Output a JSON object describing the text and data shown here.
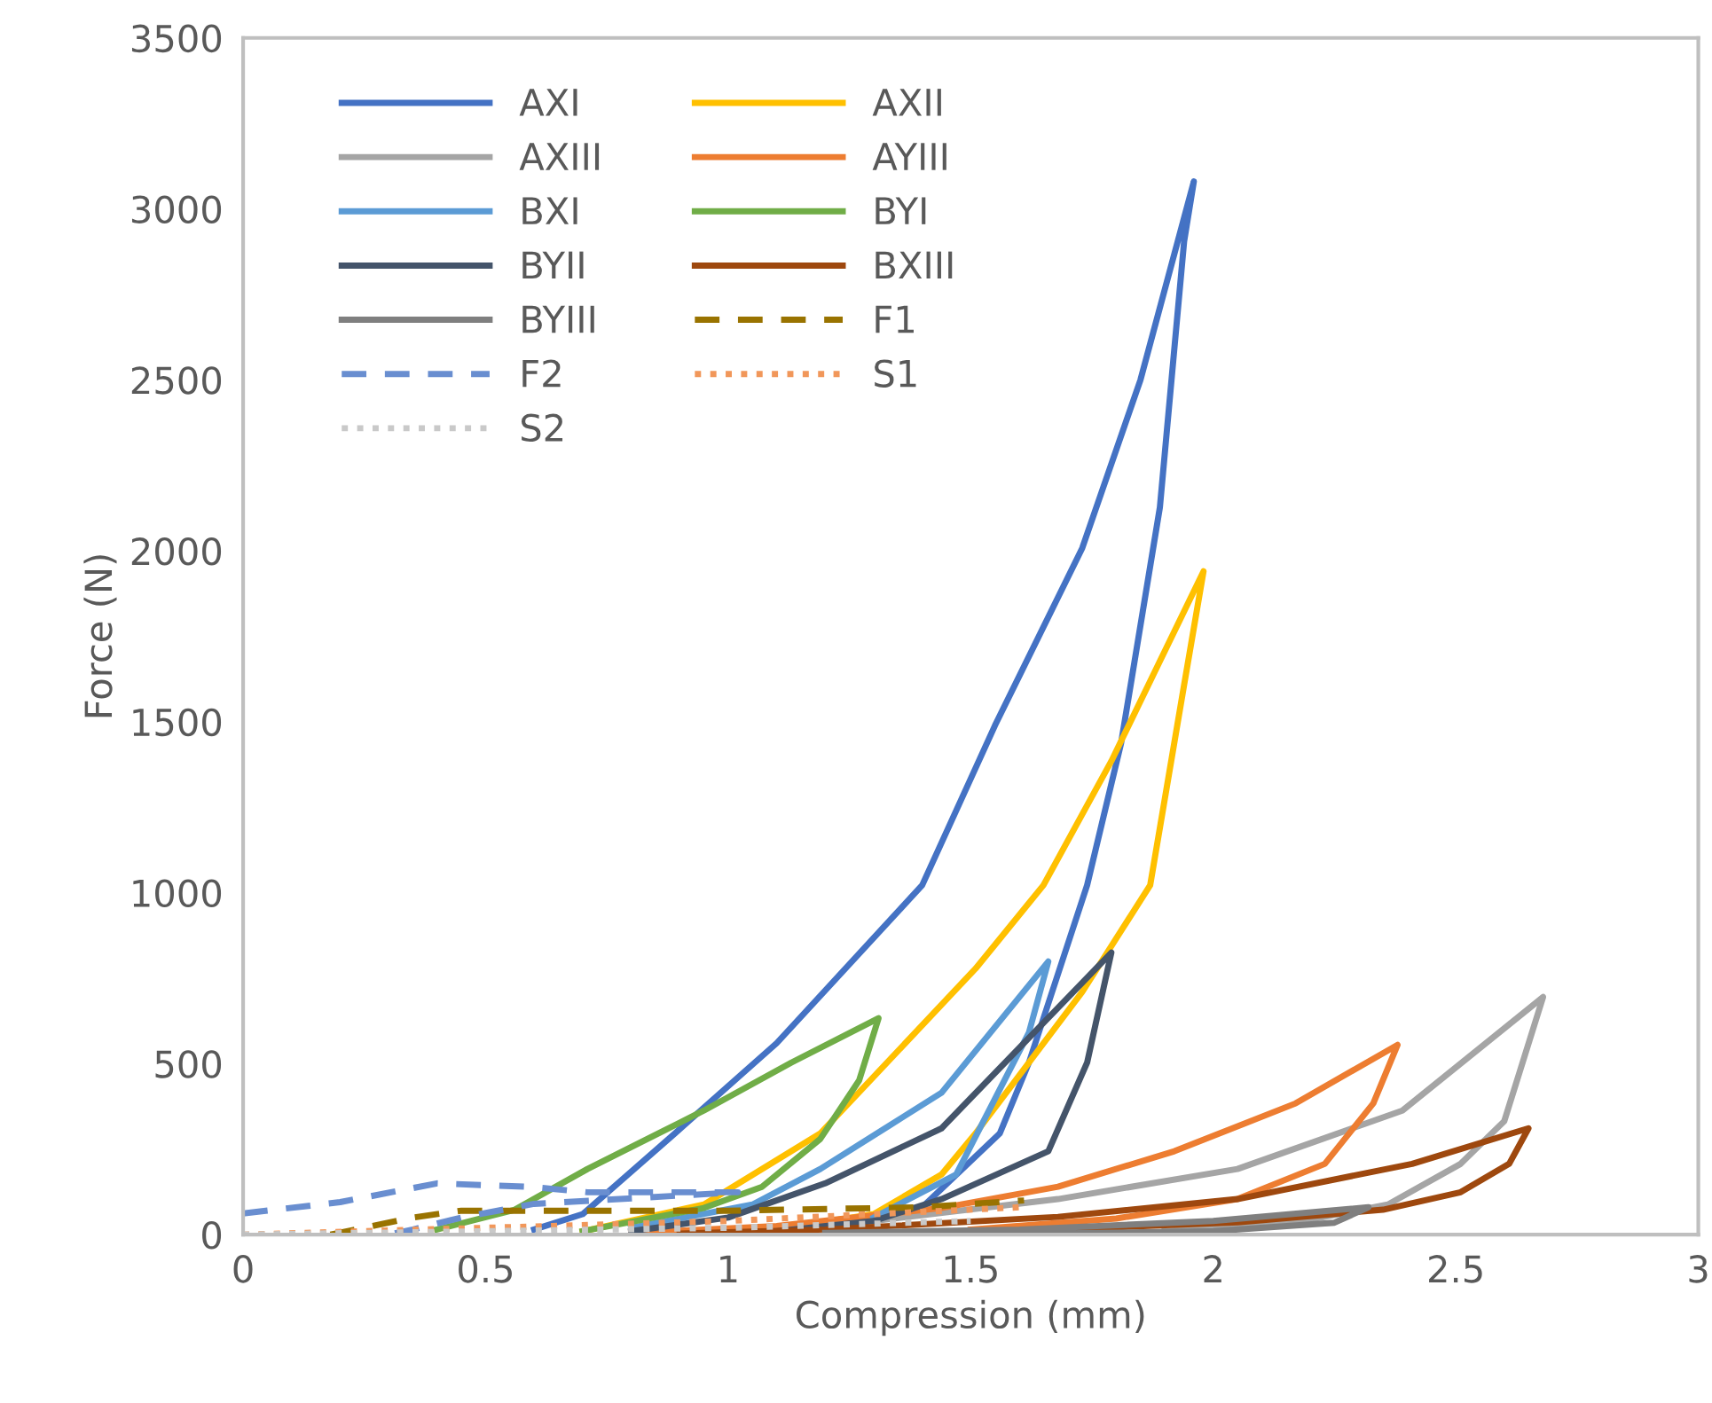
{
  "chart_data": {
    "type": "line",
    "xlabel": "Compression (mm)",
    "ylabel": "Force (N)",
    "xlim": [
      0,
      3
    ],
    "ylim": [
      0,
      3500
    ],
    "xticks": [
      0,
      0.5,
      1,
      1.5,
      2,
      2.5,
      3
    ],
    "yticks": [
      0,
      500,
      1000,
      1500,
      2000,
      2500,
      3000,
      3500
    ],
    "grid": false,
    "legend": "top left",
    "marker": "none",
    "series": [
      {
        "name": "AXI",
        "color": "#4472c4",
        "line_style": "solid",
        "x": [
          0.6,
          0.7,
          0.89,
          1.1,
          1.4,
          1.55,
          1.73,
          1.85,
          1.96,
          1.94,
          1.89,
          1.81,
          1.74,
          1.62,
          1.56,
          1.4,
          1.2
        ],
        "values": [
          15,
          60,
          296,
          560,
          1022,
          1489,
          2008,
          2500,
          3080,
          2905,
          2127,
          1437,
          1022,
          503,
          296,
          80,
          20
        ]
      },
      {
        "name": "AXII",
        "color": "#ffc000",
        "line_style": "solid",
        "x": [
          0.7,
          0.95,
          1.19,
          1.51,
          1.65,
          1.79,
          1.98,
          1.94,
          1.87,
          1.73,
          1.51,
          1.44,
          1.3,
          1.1,
          1.0
        ],
        "values": [
          10,
          88,
          296,
          778,
          1022,
          1385,
          1940,
          1608,
          1022,
          710,
          296,
          176,
          60,
          15,
          5
        ]
      },
      {
        "name": "AXIII",
        "color": "#a5a5a5",
        "line_style": "solid",
        "x": [
          1.0,
          1.3,
          1.68,
          2.05,
          2.39,
          2.68,
          2.6,
          2.51,
          2.36,
          2.17,
          1.9
        ],
        "values": [
          10,
          40,
          104,
          192,
          363,
          695,
          332,
          207,
          88,
          36,
          10
        ]
      },
      {
        "name": "AYIII",
        "color": "#ed7d31",
        "line_style": "solid",
        "x": [
          0.8,
          1.1,
          1.44,
          1.68,
          1.92,
          2.17,
          2.38,
          2.33,
          2.23,
          2.05,
          1.8,
          1.5
        ],
        "values": [
          5,
          25,
          78,
          140,
          244,
          384,
          555,
          384,
          207,
          104,
          47,
          15
        ]
      },
      {
        "name": "BXI",
        "color": "#5b9bd5",
        "line_style": "solid",
        "x": [
          0.8,
          1.05,
          1.19,
          1.44,
          1.66,
          1.62,
          1.47,
          1.3
        ],
        "values": [
          20,
          88,
          192,
          415,
          799,
          591,
          176,
          50
        ]
      },
      {
        "name": "BYI",
        "color": "#70ad47",
        "line_style": "solid",
        "x": [
          0.4,
          0.56,
          0.71,
          0.95,
          1.13,
          1.31,
          1.27,
          1.19,
          1.07,
          0.95,
          0.7
        ],
        "values": [
          15,
          73,
          192,
          363,
          503,
          633,
          451,
          280,
          140,
          78,
          10
        ]
      },
      {
        "name": "BYII",
        "color": "#44546a",
        "line_style": "solid",
        "x": [
          0.8,
          1.0,
          1.2,
          1.44,
          1.79,
          1.74,
          1.66,
          1.44,
          1.3,
          1.1
        ],
        "values": [
          10,
          50,
          150,
          311,
          825,
          503,
          244,
          104,
          40,
          10
        ]
      },
      {
        "name": "BXIII",
        "color": "#9e480e",
        "line_style": "solid",
        "x": [
          0.9,
          1.2,
          1.68,
          2.05,
          2.41,
          2.65,
          2.61,
          2.51,
          2.35,
          2.05,
          1.6
        ],
        "values": [
          3,
          15,
          52,
          104,
          207,
          311,
          207,
          124,
          73,
          36,
          10
        ]
      },
      {
        "name": "BYIII",
        "color": "#7f7f7f",
        "line_style": "solid",
        "x": [
          1.2,
          1.6,
          2.0,
          2.32,
          2.25,
          2.0,
          1.6
        ],
        "values": [
          5,
          15,
          40,
          80,
          35,
          10,
          2
        ]
      },
      {
        "name": "F1",
        "color": "#997300",
        "line_style": "dashed",
        "x": [
          0.18,
          0.25,
          0.35,
          0.45,
          1.0,
          1.4,
          1.61
        ],
        "values": [
          0,
          20,
          50,
          70,
          70,
          80,
          100
        ]
      },
      {
        "name": "F2",
        "color": "#698ed0",
        "line_style": "dashed",
        "x": [
          0,
          0.2,
          0.4,
          0.59,
          0.71,
          1.02,
          0.6,
          0.45,
          0.35,
          0.3
        ],
        "values": [
          62,
          95,
          150,
          140,
          124,
          124,
          90,
          50,
          15,
          0
        ]
      },
      {
        "name": "S1",
        "color": "#f1975a",
        "line_style": "dotted",
        "x": [
          0,
          0.5,
          1.0,
          1.6
        ],
        "values": [
          0,
          20,
          40,
          80
        ]
      },
      {
        "name": "S2",
        "color": "#c9c9c9",
        "line_style": "dotted",
        "x": [
          0,
          0.5,
          1.0,
          1.5
        ],
        "values": [
          0,
          10,
          20,
          40
        ]
      }
    ]
  }
}
